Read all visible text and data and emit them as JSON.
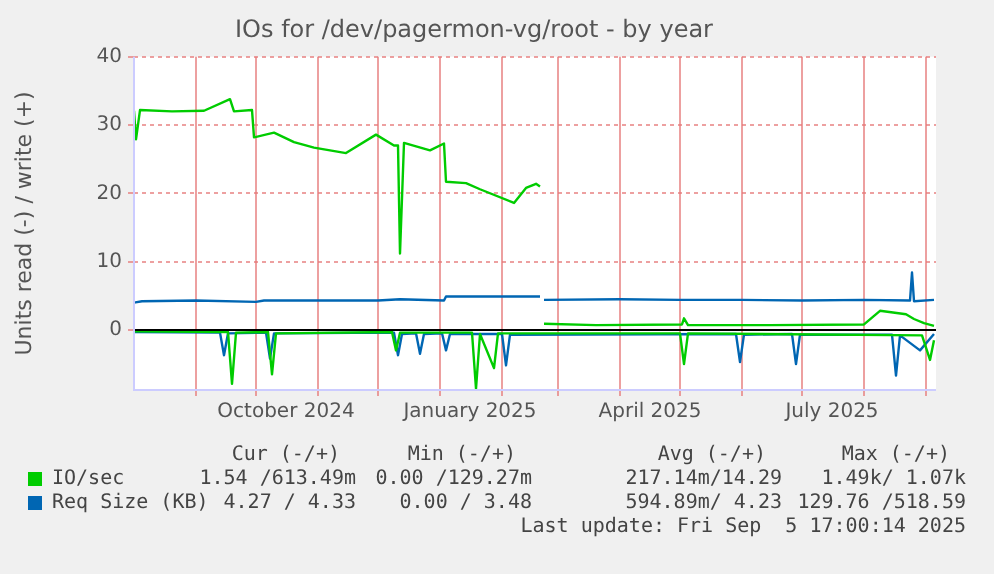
{
  "chart_data": {
    "type": "line",
    "title": "IOs for /dev/pagermon-vg/root - by year",
    "ylabel": "Units read (-) / write (+)",
    "xlim": [
      "2024-08-01",
      "2025-09-06"
    ],
    "xticks": [
      {
        "value": "2024-09-01",
        "label": null
      },
      {
        "value": "2024-10-01",
        "label": null
      },
      {
        "value": "2024-10-16",
        "label": "October 2024"
      },
      {
        "value": "2024-11-01",
        "label": null
      },
      {
        "value": "2024-12-01",
        "label": null
      },
      {
        "value": "2025-01-01",
        "label": null
      },
      {
        "value": "2025-01-16",
        "label": "January 2025"
      },
      {
        "value": "2025-02-01",
        "label": null
      },
      {
        "value": "2025-03-01",
        "label": null
      },
      {
        "value": "2025-04-01",
        "label": null
      },
      {
        "value": "2025-04-16",
        "label": "April 2025"
      },
      {
        "value": "2025-05-01",
        "label": null
      },
      {
        "value": "2025-06-01",
        "label": null
      },
      {
        "value": "2025-07-01",
        "label": null
      },
      {
        "value": "2025-07-16",
        "label": "July 2025"
      },
      {
        "value": "2025-08-01",
        "label": null
      },
      {
        "value": "2025-09-01",
        "label": null
      }
    ],
    "ylim": [
      -8.8,
      40
    ],
    "yticks": [
      0,
      10,
      20,
      30,
      40
    ],
    "grid": true,
    "legend": "bottom",
    "marker": "none",
    "ref_lines": [
      {
        "axis": "y",
        "value": 0,
        "color": "#000000"
      }
    ],
    "series": [
      {
        "name": "IO/sec",
        "color": "#00cc00",
        "x": [
          "2024-08-01",
          "2024-08-02",
          "2024-08-04",
          "2024-08-20",
          "2024-09-05",
          "2024-09-18",
          "2024-09-20",
          "2024-09-29",
          "2024-09-30",
          "2024-10-10",
          "2024-10-20",
          "2024-10-30",
          "2024-11-15",
          "2024-11-30",
          "2024-12-09",
          "2024-12-11",
          "2024-12-12",
          "2024-12-14",
          "2024-12-27",
          "2025-01-03",
          "2025-01-04",
          "2025-01-14",
          "2025-01-21",
          "2025-02-07",
          "2025-02-13",
          "2025-02-18",
          "2025-02-20",
          "2025-02-21",
          "2025-02-22",
          "2025-03-20",
          "2025-05-02",
          "2025-05-03",
          "2025-05-05",
          "2025-06-15",
          "2025-08-01",
          "2025-08-09",
          "2025-08-22",
          "2025-08-26",
          "2025-08-31",
          "2025-09-05"
        ],
        "values": [
          32.1,
          27.9,
          32.2,
          32.0,
          32.1,
          33.8,
          32.0,
          32.2,
          28.2,
          28.9,
          27.5,
          26.7,
          25.9,
          28.6,
          27.0,
          27.0,
          11.2,
          27.4,
          26.3,
          27.3,
          21.7,
          21.5,
          20.6,
          18.6,
          20.8,
          21.4,
          21.0,
          null,
          0.9,
          0.7,
          0.8,
          1.7,
          0.7,
          0.7,
          0.8,
          2.8,
          2.3,
          1.6,
          1.0,
          0.6
        ]
      },
      {
        "color": "#00cc00",
        "x": [
          "2024-08-01",
          "2024-09-17",
          "2024-09-19",
          "2024-09-21",
          "2024-10-07",
          "2024-10-09",
          "2024-10-11",
          "2024-12-08",
          "2024-12-10",
          "2024-12-12",
          "2025-01-17",
          "2025-01-19",
          "2025-01-21",
          "2025-01-28",
          "2025-01-30",
          "2025-03-15",
          "2025-05-01",
          "2025-05-03",
          "2025-05-05",
          "2025-08-30",
          "2025-09-03",
          "2025-09-05"
        ],
        "values": [
          -0.2,
          -0.3,
          -7.9,
          -0.4,
          -0.3,
          -6.5,
          -0.5,
          -0.3,
          -3.0,
          -0.4,
          -0.4,
          -8.6,
          -0.6,
          -5.6,
          -0.5,
          -0.5,
          -0.5,
          -5.0,
          -0.5,
          -0.8,
          -4.4,
          -1.5
        ]
      },
      {
        "name": "Req Size (KB)",
        "color": "#0066b3",
        "x": [
          "2024-08-01",
          "2024-08-05",
          "2024-09-01",
          "2024-10-01",
          "2024-10-05",
          "2024-11-01",
          "2024-12-01",
          "2024-12-12",
          "2025-01-03",
          "2025-01-04",
          "2025-02-20",
          "2025-02-21",
          "2025-02-22",
          "2025-04-01",
          "2025-05-01",
          "2025-06-01",
          "2025-07-01",
          "2025-08-01",
          "2025-08-24",
          "2025-08-25",
          "2025-08-26",
          "2025-09-05"
        ],
        "values": [
          4.0,
          4.2,
          4.3,
          4.1,
          4.3,
          4.3,
          4.3,
          4.5,
          4.3,
          4.9,
          4.9,
          null,
          4.4,
          4.5,
          4.4,
          4.4,
          4.3,
          4.4,
          4.3,
          8.4,
          4.2,
          4.4
        ]
      },
      {
        "color": "#0066b3",
        "x": [
          "2024-08-01",
          "2024-09-13",
          "2024-09-15",
          "2024-09-17",
          "2024-10-06",
          "2024-10-08",
          "2024-10-10",
          "2024-12-09",
          "2024-12-11",
          "2024-12-13",
          "2024-12-20",
          "2024-12-22",
          "2024-12-24",
          "2025-01-02",
          "2025-01-04",
          "2025-01-06",
          "2025-02-01",
          "2025-02-03",
          "2025-02-05",
          "2025-05-29",
          "2025-05-31",
          "2025-06-02",
          "2025-06-26",
          "2025-06-28",
          "2025-06-30",
          "2025-08-15",
          "2025-08-17",
          "2025-08-19",
          "2025-08-29",
          "2025-09-05"
        ],
        "values": [
          -0.3,
          -0.4,
          -3.7,
          -0.5,
          -0.4,
          -4.2,
          -0.5,
          -0.4,
          -3.7,
          -0.6,
          -0.5,
          -3.5,
          -0.6,
          -0.5,
          -3.0,
          -0.6,
          -0.6,
          -5.2,
          -0.7,
          -0.6,
          -4.7,
          -0.7,
          -0.6,
          -5.0,
          -0.7,
          -0.7,
          -6.7,
          -0.8,
          -3.0,
          -0.6
        ]
      }
    ],
    "annotations": [
      "Cur (-/+)",
      "Min (-/+)",
      "Avg (-/+)",
      "Max (-/+)",
      "1.54 /613.49m",
      "0.00 /129.27m",
      "217.14m/14.29",
      "1.49k/ 1.07k",
      "4.27 / 4.33",
      "0.00 / 3.48",
      "594.89m/ 4.23",
      "129.76 /518.59",
      "Last update: Fri Sep  5 17:00:14 2025"
    ]
  }
}
